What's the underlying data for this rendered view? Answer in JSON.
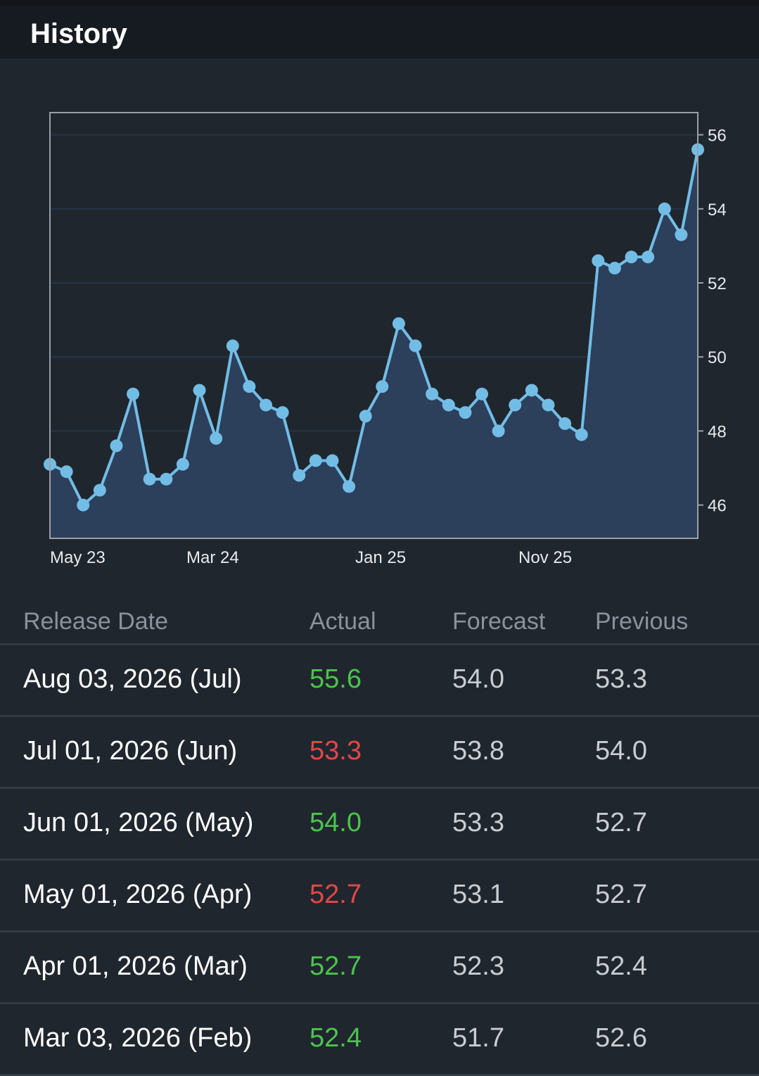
{
  "header": {
    "title": "History"
  },
  "chart_data": {
    "type": "line",
    "x_tick_labels": [
      "May 23",
      "Mar 24",
      "Jan 25",
      "Nov 25"
    ],
    "y_ticks": [
      46,
      48,
      50,
      52,
      54,
      56
    ],
    "ylim": [
      45.1,
      56.6
    ],
    "grid": true,
    "fill": "area",
    "values": [
      47.1,
      46.9,
      46.0,
      46.4,
      47.6,
      49.0,
      46.7,
      46.7,
      47.1,
      49.1,
      47.8,
      50.3,
      49.2,
      48.7,
      48.5,
      46.8,
      47.2,
      47.2,
      46.5,
      48.4,
      49.2,
      50.9,
      50.3,
      49.0,
      48.7,
      48.5,
      49.0,
      48.0,
      48.7,
      49.1,
      48.7,
      48.2,
      47.9,
      52.6,
      52.4,
      52.7,
      52.7,
      54.0,
      53.3,
      55.6
    ],
    "colors": {
      "line": "#72bde6",
      "fill": "#2e4360",
      "grid": "#243548",
      "frame": "#9aa0a6"
    }
  },
  "table": {
    "headers": {
      "date": "Release Date",
      "actual": "Actual",
      "forecast": "Forecast",
      "previous": "Previous"
    },
    "rows": [
      {
        "date": "Aug 03, 2026 (Jul)",
        "actual": "55.6",
        "forecast": "54.0",
        "previous": "53.3",
        "status": "up"
      },
      {
        "date": "Jul 01, 2026 (Jun)",
        "actual": "53.3",
        "forecast": "53.8",
        "previous": "54.0",
        "status": "down"
      },
      {
        "date": "Jun 01, 2026 (May)",
        "actual": "54.0",
        "forecast": "53.3",
        "previous": "52.7",
        "status": "up"
      },
      {
        "date": "May 01, 2026 (Apr)",
        "actual": "52.7",
        "forecast": "53.1",
        "previous": "52.7",
        "status": "down"
      },
      {
        "date": "Apr 01, 2026 (Mar)",
        "actual": "52.7",
        "forecast": "52.3",
        "previous": "52.4",
        "status": "up"
      },
      {
        "date": "Mar 03, 2026 (Feb)",
        "actual": "52.4",
        "forecast": "51.7",
        "previous": "52.6",
        "status": "up"
      }
    ],
    "status_colors": {
      "up": "#4cc34e",
      "down": "#e04848"
    }
  }
}
